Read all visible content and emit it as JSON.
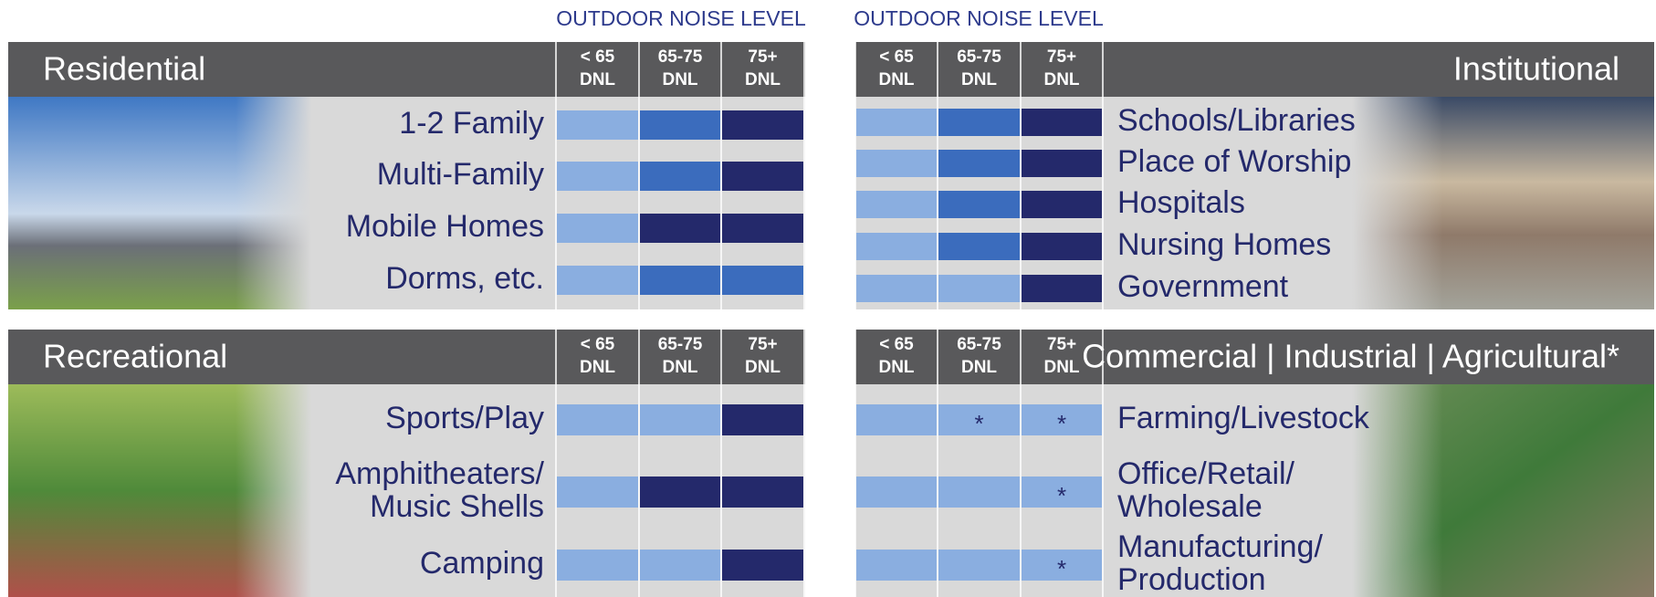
{
  "caption": "OUTDOOR NOISE LEVEL",
  "columns": [
    {
      "range": "< 65",
      "unit": "DNL"
    },
    {
      "range": "65-75",
      "unit": "DNL"
    },
    {
      "range": "75+",
      "unit": "DNL"
    }
  ],
  "colors": [
    "#8aaee0",
    "#3b6cbd",
    "#24296b"
  ],
  "panels": [
    {
      "title": "Residential",
      "rows": [
        {
          "label": [
            "1-2  Family"
          ],
          "cells": [
            {
              "level": 0
            },
            {
              "level": 1
            },
            {
              "level": 2
            }
          ]
        },
        {
          "label": [
            "Multi-Family"
          ],
          "cells": [
            {
              "level": 0
            },
            {
              "level": 1
            },
            {
              "level": 2
            }
          ]
        },
        {
          "label": [
            "Mobile Homes"
          ],
          "cells": [
            {
              "level": 0
            },
            {
              "level": 2
            },
            {
              "level": 2
            }
          ]
        },
        {
          "label": [
            "Dorms, etc."
          ],
          "cells": [
            {
              "level": 0
            },
            {
              "level": 1
            },
            {
              "level": 1
            }
          ]
        }
      ]
    },
    {
      "title": "Institutional",
      "rows": [
        {
          "label": [
            "Schools/Libraries"
          ],
          "cells": [
            {
              "level": 0
            },
            {
              "level": 1
            },
            {
              "level": 2
            }
          ]
        },
        {
          "label": [
            "Place of Worship"
          ],
          "cells": [
            {
              "level": 0
            },
            {
              "level": 1
            },
            {
              "level": 2
            }
          ]
        },
        {
          "label": [
            "Hospitals"
          ],
          "cells": [
            {
              "level": 0
            },
            {
              "level": 1
            },
            {
              "level": 2
            }
          ]
        },
        {
          "label": [
            "Nursing Homes"
          ],
          "cells": [
            {
              "level": 0
            },
            {
              "level": 1
            },
            {
              "level": 2
            }
          ]
        },
        {
          "label": [
            "Government"
          ],
          "cells": [
            {
              "level": 0
            },
            {
              "level": 0
            },
            {
              "level": 2
            }
          ]
        }
      ]
    },
    {
      "title": "Recreational",
      "rows": [
        {
          "label": [
            "Sports/Play"
          ],
          "cells": [
            {
              "level": 0
            },
            {
              "level": 0
            },
            {
              "level": 2
            }
          ]
        },
        {
          "label": [
            "Amphitheaters/",
            "Music Shells"
          ],
          "cells": [
            {
              "level": 0
            },
            {
              "level": 2
            },
            {
              "level": 2
            }
          ]
        },
        {
          "label": [
            "Camping"
          ],
          "cells": [
            {
              "level": 0
            },
            {
              "level": 0
            },
            {
              "level": 2
            }
          ]
        }
      ]
    },
    {
      "title": "Commercial | Industrial | Agricultural*",
      "rows": [
        {
          "label": [
            "Farming/Livestock"
          ],
          "cells": [
            {
              "level": 0
            },
            {
              "level": 0,
              "note": "*"
            },
            {
              "level": 0,
              "note": "*"
            }
          ]
        },
        {
          "label": [
            "Office/Retail/",
            "Wholesale"
          ],
          "cells": [
            {
              "level": 0
            },
            {
              "level": 0
            },
            {
              "level": 0,
              "note": "*"
            }
          ]
        },
        {
          "label": [
            "Manufacturing/",
            "Production"
          ],
          "cells": [
            {
              "level": 0
            },
            {
              "level": 0
            },
            {
              "level": 0,
              "note": "*"
            }
          ]
        }
      ]
    }
  ]
}
